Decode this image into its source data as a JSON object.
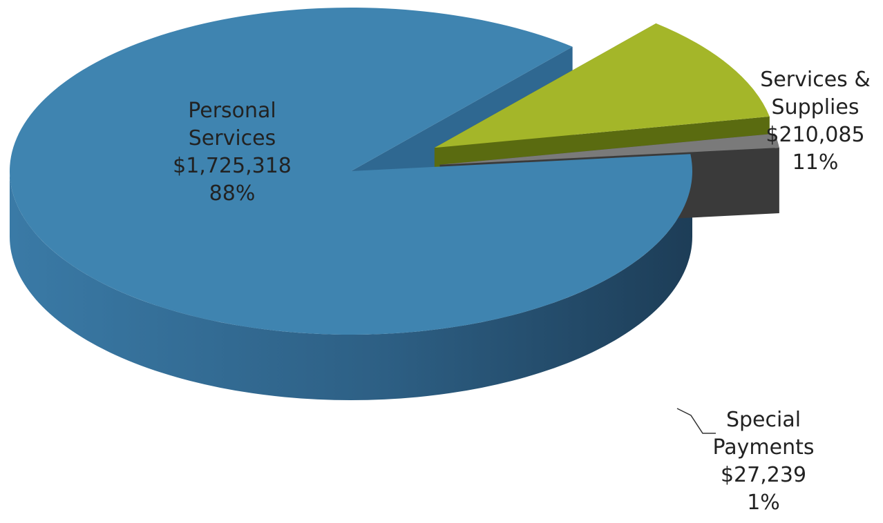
{
  "chart_data": {
    "type": "pie",
    "style": "3d-exploded",
    "slices": [
      {
        "name": "Personal Services",
        "label_lines": [
          "Personal",
          "Services"
        ],
        "value": 1725318,
        "value_label": "$1,725,318",
        "percent_label": "88%",
        "color": "#3f84b0",
        "side_color": "#2f6891"
      },
      {
        "name": "Services & Supplies",
        "label_lines": [
          "Services &",
          "Supplies"
        ],
        "value": 210085,
        "value_label": "$210,085",
        "percent_label": "11%",
        "color": "#a4b629",
        "side_color": "#5a6b10"
      },
      {
        "name": "Special Payments",
        "label_lines": [
          "Special",
          "Payments"
        ],
        "value": 27239,
        "value_label": "$27,239",
        "percent_label": "1%",
        "color": "#7a7a7a",
        "side_color": "#3a3a3a"
      }
    ]
  }
}
